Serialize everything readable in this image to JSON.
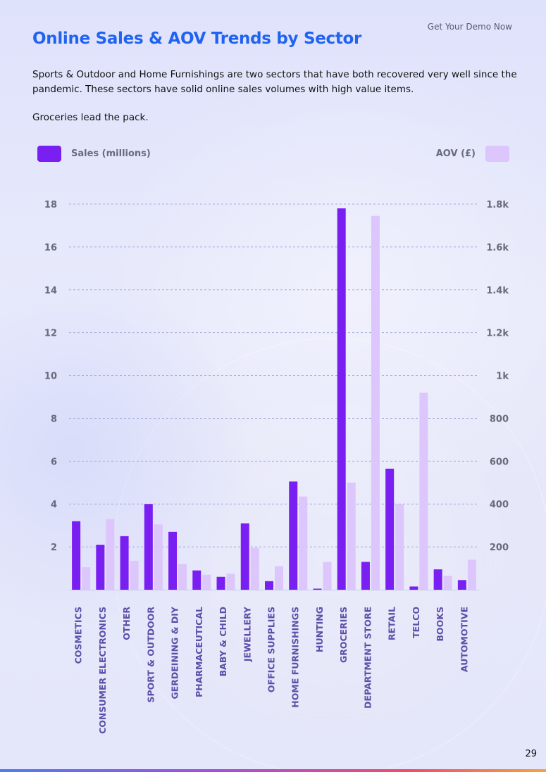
{
  "header": {
    "demo_link": "Get Your Demo Now",
    "title": "Online Sales & AOV Trends by Sector"
  },
  "intro": {
    "paragraph": "Sports & Outdoor and Home Furnishings are two sectors that have both recovered very well since the pandemic. These sectors have solid online sales volumes with high value items.",
    "lead": "Groceries lead the pack."
  },
  "legend": {
    "sales_label": "Sales (millions)",
    "aov_label": "AOV (£)"
  },
  "colors": {
    "title": "#1f63f0",
    "sales_bar": "#7a1ff2",
    "aov_bar": "#dcc6fb",
    "axis_text": "#6a6a7c",
    "category_text": "#5b4fa8"
  },
  "page_number": "29",
  "chart_data": {
    "type": "bar",
    "categories": [
      "COSMETICS",
      "CONSUMER ELECTRONICS",
      "OTHER",
      "SPORT & OUTDOOR",
      "GERDEINING & DIY",
      "PHARMACEUTICAL",
      "BABY & CHILD",
      "JEWELLERY",
      "OFFICE SUPPLIES",
      "HOME FURNISHINGS",
      "HUNTING",
      "GROCERIES",
      "DEPARTMENT STORE",
      "RETAIL",
      "TELCO",
      "BOOKS",
      "AUTOMOTIVE"
    ],
    "series": [
      {
        "name": "Sales (millions)",
        "axis": "left",
        "values": [
          3.2,
          2.1,
          2.5,
          4.0,
          2.7,
          0.9,
          0.6,
          3.1,
          0.4,
          5.05,
          0.05,
          17.8,
          1.3,
          5.65,
          0.15,
          0.95,
          0.45
        ]
      },
      {
        "name": "AOV (£)",
        "axis": "right",
        "values": [
          105,
          330,
          135,
          305,
          120,
          70,
          75,
          195,
          110,
          435,
          130,
          500,
          1745,
          400,
          920,
          65,
          140
        ]
      }
    ],
    "y_left": {
      "ylim": [
        0,
        18
      ],
      "ticks": [
        "2",
        "4",
        "6",
        "8",
        "10",
        "12",
        "14",
        "16",
        "18"
      ],
      "tick_values": [
        2,
        4,
        6,
        8,
        10,
        12,
        14,
        16,
        18
      ]
    },
    "y_right": {
      "ylim": [
        0,
        1800
      ],
      "ticks": [
        "200",
        "400",
        "600",
        "800",
        "1k",
        "1.2k",
        "1.4k",
        "1.6k",
        "1.8k"
      ],
      "tick_values": [
        200,
        400,
        600,
        800,
        1000,
        1200,
        1400,
        1600,
        1800
      ]
    },
    "grid": "dashed horizontal",
    "legend": "top"
  }
}
